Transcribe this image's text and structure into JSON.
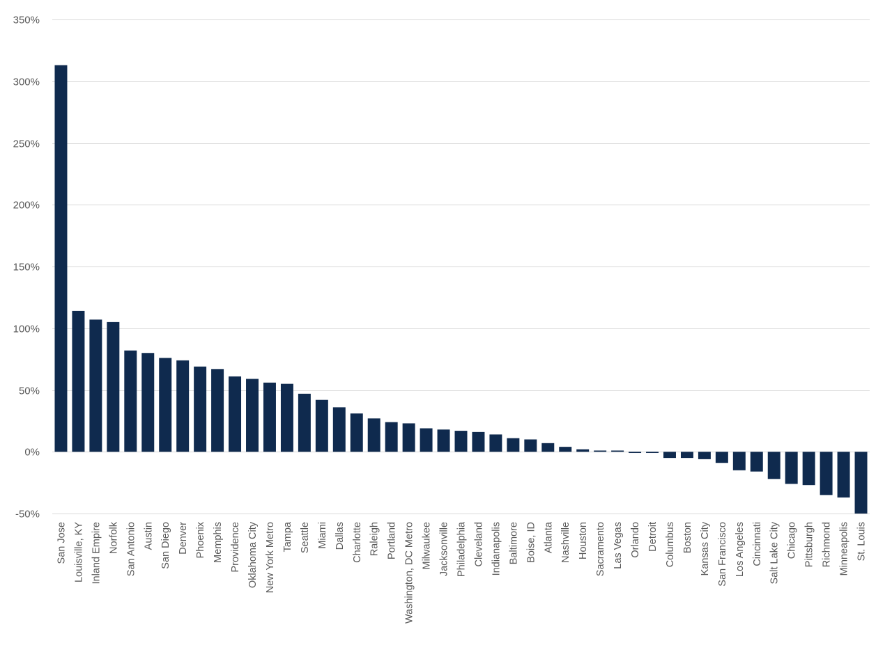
{
  "chart_data": {
    "type": "bar",
    "title": "",
    "xlabel": "",
    "ylabel": "",
    "ylim": [
      -50,
      350
    ],
    "yticks": [
      -50,
      0,
      50,
      100,
      150,
      200,
      250,
      300,
      350
    ],
    "ytick_labels": [
      "-50%",
      "0%",
      "50%",
      "100%",
      "150%",
      "200%",
      "250%",
      "300%",
      "350%"
    ],
    "grid": true,
    "bar_color": "#0f2a4e",
    "categories": [
      "San Jose",
      "Louisville, KY",
      "Inland Empire",
      "Norfolk",
      "San Antonio",
      "Austin",
      "San Diego",
      "Denver",
      "Phoenix",
      "Memphis",
      "Providence",
      "Oklahoma City",
      "New York Metro",
      "Tampa",
      "Seattle",
      "Miami",
      "Dallas",
      "Charlotte",
      "Raleigh",
      "Portland",
      "Washington, DC Metro",
      "Milwaukee",
      "Jacksonville",
      "Philadelphia",
      "Cleveland",
      "Indianapolis",
      "Baltimore",
      "Boise, ID",
      "Atlanta",
      "Nashville",
      "Houston",
      "Sacramento",
      "Las Vegas",
      "Orlando",
      "Detroit",
      "Columbus",
      "Boston",
      "Kansas City",
      "San Francisco",
      "Los Angeles",
      "Cincinnati",
      "Salt Lake City",
      "Chicago",
      "Pittsburgh",
      "Richmond",
      "Minneapolis",
      "St. Louis"
    ],
    "values": [
      313,
      114,
      107,
      105,
      82,
      80,
      76,
      74,
      69,
      67,
      61,
      59,
      56,
      55,
      47,
      42,
      36,
      31,
      27,
      24,
      23,
      19,
      18,
      17,
      16,
      14,
      11,
      10,
      7,
      4,
      2,
      1,
      1,
      -1,
      -1,
      -5,
      -5,
      -6,
      -9,
      -15,
      -16,
      -22,
      -26,
      -27,
      -35,
      -37,
      -50
    ]
  }
}
